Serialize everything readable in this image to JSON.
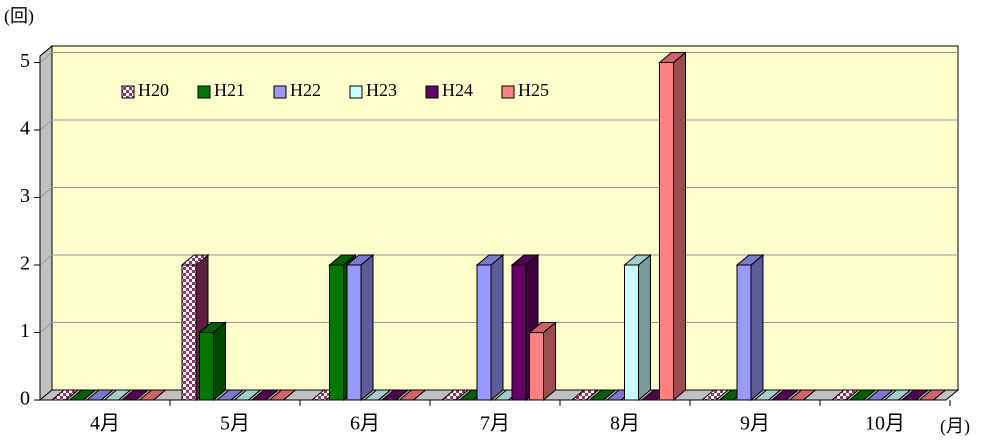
{
  "chart_data": {
    "type": "bar3d",
    "y_label": "(回)",
    "x_unit": "(月)",
    "categories": [
      "4月",
      "5月",
      "6月",
      "7月",
      "8月",
      "9月",
      "10月"
    ],
    "series": [
      {
        "name": "H20",
        "color": "#993366",
        "pattern": "checker",
        "values": [
          0,
          2,
          0,
          0,
          0,
          0,
          0
        ]
      },
      {
        "name": "H21",
        "color": "#007700",
        "values": [
          0,
          1,
          2,
          0,
          0,
          0,
          0
        ]
      },
      {
        "name": "H22",
        "color": "#9999ff",
        "values": [
          0,
          0,
          2,
          2,
          0,
          2,
          0
        ]
      },
      {
        "name": "H23",
        "color": "#ccffff",
        "values": [
          0,
          0,
          0,
          0,
          2,
          0,
          0
        ]
      },
      {
        "name": "H24",
        "color": "#660066",
        "values": [
          0,
          0,
          0,
          2,
          0,
          0,
          0
        ]
      },
      {
        "name": "H25",
        "color": "#ff8080",
        "values": [
          0,
          0,
          0,
          1,
          5,
          0,
          0
        ]
      }
    ],
    "ylim": [
      0,
      5
    ],
    "yticks": [
      0,
      1,
      2,
      3,
      4,
      5
    ],
    "grid": true
  }
}
